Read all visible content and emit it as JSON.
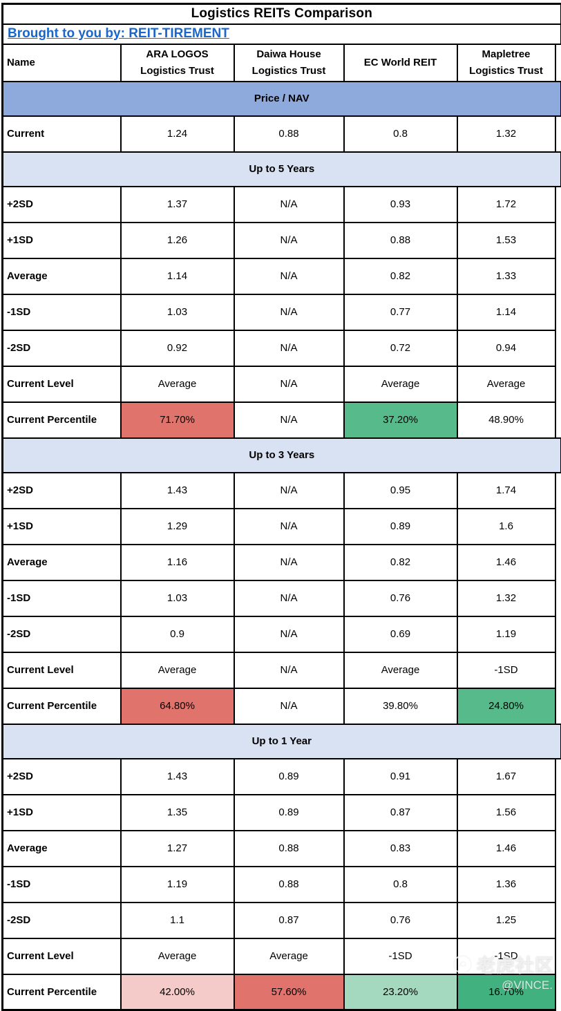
{
  "header": {
    "title": "Logistics REITs Comparison",
    "byline": "Brought to you by: REIT-TIREMENT"
  },
  "colors": {
    "band_primary": "#8EA9DB",
    "band_secondary": "#D9E2F3",
    "link_blue": "#1A66C9",
    "percentile_red": "#E0746C",
    "percentile_green": "#57BA8B",
    "percentile_pink": "#F4CBC8",
    "percentile_light_green": "#A4D9BF",
    "percentile_deep_green": "#41B27F",
    "grid_black": "#000000"
  },
  "chart_data": {
    "type": "table",
    "title": "Logistics REITs Comparison",
    "columns": [
      "Name",
      "ARA LOGOS Logistics Trust",
      "Daiwa House Logistics Trust",
      "EC World REIT",
      "Mapletree Logistics Trust"
    ],
    "sections": [
      {
        "band": "Price / NAV",
        "band_style": "primary",
        "rows": [
          {
            "label": "Current",
            "values": [
              "1.24",
              "0.88",
              "0.8",
              "1.32"
            ],
            "fills": [
              null,
              null,
              null,
              null
            ]
          }
        ]
      },
      {
        "band": "Up to 5 Years",
        "band_style": "secondary",
        "rows": [
          {
            "label": "+2SD",
            "values": [
              "1.37",
              "N/A",
              "0.93",
              "1.72"
            ],
            "fills": [
              null,
              null,
              null,
              null
            ]
          },
          {
            "label": "+1SD",
            "values": [
              "1.26",
              "N/A",
              "0.88",
              "1.53"
            ],
            "fills": [
              null,
              null,
              null,
              null
            ]
          },
          {
            "label": "Average",
            "values": [
              "1.14",
              "N/A",
              "0.82",
              "1.33"
            ],
            "fills": [
              null,
              null,
              null,
              null
            ]
          },
          {
            "label": "-1SD",
            "values": [
              "1.03",
              "N/A",
              "0.77",
              "1.14"
            ],
            "fills": [
              null,
              null,
              null,
              null
            ]
          },
          {
            "label": "-2SD",
            "values": [
              "0.92",
              "N/A",
              "0.72",
              "0.94"
            ],
            "fills": [
              null,
              null,
              null,
              null
            ]
          },
          {
            "label": "Current Level",
            "values": [
              "Average",
              "N/A",
              "Average",
              "Average"
            ],
            "fills": [
              null,
              null,
              null,
              null
            ]
          },
          {
            "label": "Current Percentile",
            "values": [
              "71.70%",
              "N/A",
              "37.20%",
              "48.90%"
            ],
            "fills": [
              "#E0746C",
              null,
              "#57BA8B",
              null
            ]
          }
        ]
      },
      {
        "band": "Up to 3 Years",
        "band_style": "secondary",
        "rows": [
          {
            "label": "+2SD",
            "values": [
              "1.43",
              "N/A",
              "0.95",
              "1.74"
            ],
            "fills": [
              null,
              null,
              null,
              null
            ]
          },
          {
            "label": "+1SD",
            "values": [
              "1.29",
              "N/A",
              "0.89",
              "1.6"
            ],
            "fills": [
              null,
              null,
              null,
              null
            ]
          },
          {
            "label": "Average",
            "values": [
              "1.16",
              "N/A",
              "0.82",
              "1.46"
            ],
            "fills": [
              null,
              null,
              null,
              null
            ]
          },
          {
            "label": "-1SD",
            "values": [
              "1.03",
              "N/A",
              "0.76",
              "1.32"
            ],
            "fills": [
              null,
              null,
              null,
              null
            ]
          },
          {
            "label": "-2SD",
            "values": [
              "0.9",
              "N/A",
              "0.69",
              "1.19"
            ],
            "fills": [
              null,
              null,
              null,
              null
            ]
          },
          {
            "label": "Current Level",
            "values": [
              "Average",
              "N/A",
              "Average",
              "-1SD"
            ],
            "fills": [
              null,
              null,
              null,
              null
            ]
          },
          {
            "label": "Current Percentile",
            "values": [
              "64.80%",
              "N/A",
              "39.80%",
              "24.80%"
            ],
            "fills": [
              "#E0746C",
              null,
              null,
              "#57BA8B"
            ]
          }
        ]
      },
      {
        "band": "Up to 1 Year",
        "band_style": "secondary",
        "rows": [
          {
            "label": "+2SD",
            "values": [
              "1.43",
              "0.89",
              "0.91",
              "1.67"
            ],
            "fills": [
              null,
              null,
              null,
              null
            ]
          },
          {
            "label": "+1SD",
            "values": [
              "1.35",
              "0.89",
              "0.87",
              "1.56"
            ],
            "fills": [
              null,
              null,
              null,
              null
            ]
          },
          {
            "label": "Average",
            "values": [
              "1.27",
              "0.88",
              "0.83",
              "1.46"
            ],
            "fills": [
              null,
              null,
              null,
              null
            ]
          },
          {
            "label": "-1SD",
            "values": [
              "1.19",
              "0.88",
              "0.8",
              "1.36"
            ],
            "fills": [
              null,
              null,
              null,
              null
            ]
          },
          {
            "label": "-2SD",
            "values": [
              "1.1",
              "0.87",
              "0.76",
              "1.25"
            ],
            "fills": [
              null,
              null,
              null,
              null
            ]
          },
          {
            "label": "Current Level",
            "values": [
              "Average",
              "Average",
              "-1SD",
              "-1SD"
            ],
            "fills": [
              null,
              null,
              null,
              null
            ]
          },
          {
            "label": "Current Percentile",
            "values": [
              "42.00%",
              "57.60%",
              "23.20%",
              "16.70%"
            ],
            "fills": [
              "#F4CBC8",
              "#E0746C",
              "#A4D9BF",
              "#41B27F"
            ]
          }
        ]
      }
    ]
  },
  "watermark": {
    "brand": "老虎社区",
    "handle": "@VINCE."
  }
}
